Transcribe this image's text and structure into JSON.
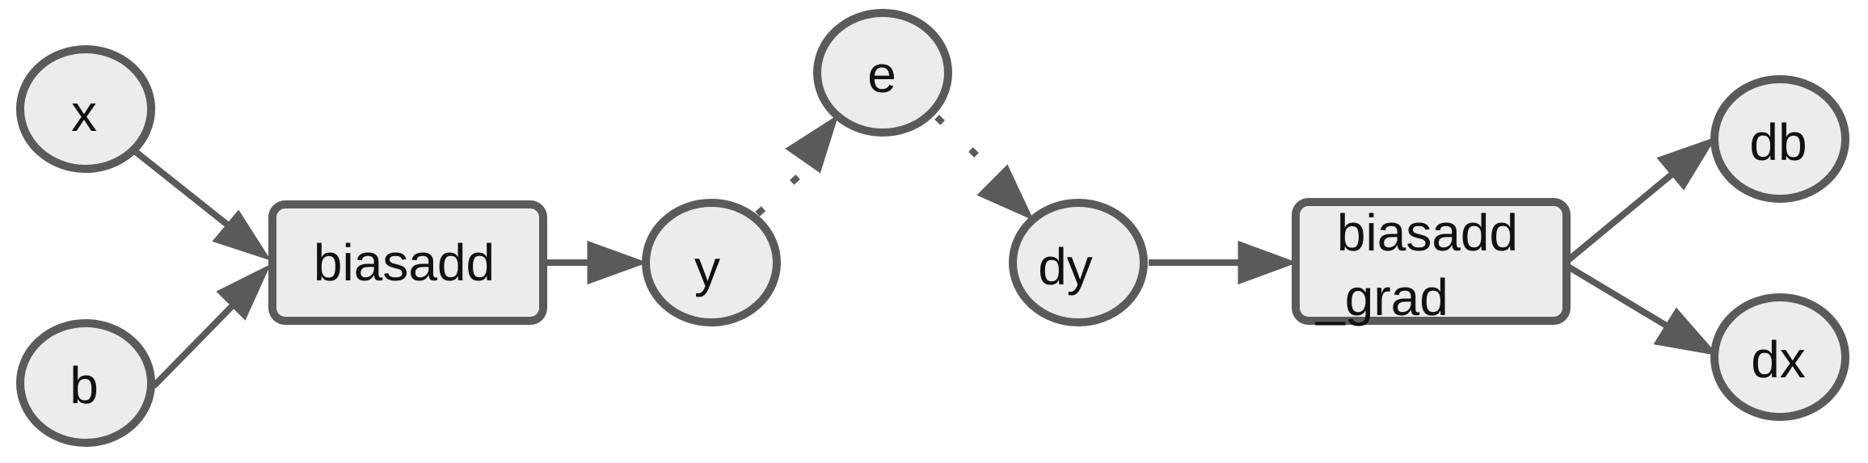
{
  "nodes": {
    "x": "x",
    "b": "b",
    "biasadd": "biasadd",
    "y": "y",
    "e": "e",
    "dy": "dy",
    "biasadd_grad_line1": "biasadd",
    "biasadd_grad_line2": "_grad",
    "db": "db",
    "dx": "dx"
  },
  "edges": [
    {
      "from": "x",
      "to": "biasadd",
      "style": "solid"
    },
    {
      "from": "b",
      "to": "biasadd",
      "style": "solid"
    },
    {
      "from": "biasadd",
      "to": "y",
      "style": "solid"
    },
    {
      "from": "y",
      "to": "e",
      "style": "dotted"
    },
    {
      "from": "e",
      "to": "dy",
      "style": "dotted"
    },
    {
      "from": "dy",
      "to": "biasadd_grad",
      "style": "solid"
    },
    {
      "from": "biasadd_grad",
      "to": "db",
      "style": "solid"
    },
    {
      "from": "biasadd_grad",
      "to": "dx",
      "style": "solid"
    }
  ],
  "colors": {
    "node_fill": "#ececec",
    "node_stroke": "#5a5a5a",
    "edge": "#5a5a5a",
    "text": "#111111"
  }
}
